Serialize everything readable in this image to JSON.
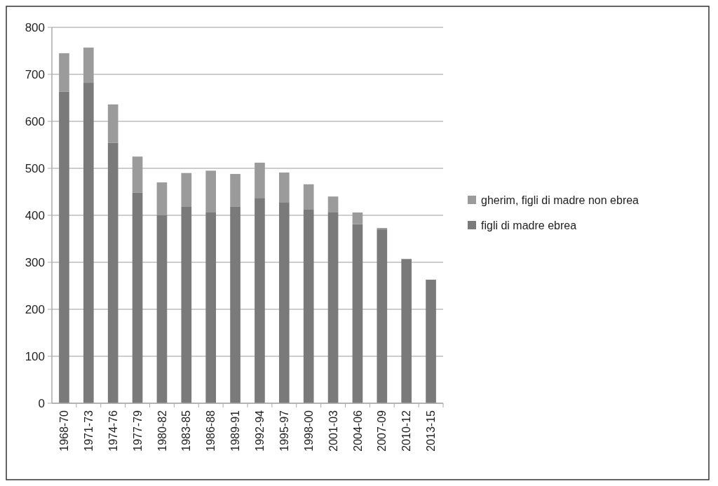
{
  "chart_data": {
    "type": "bar",
    "stacked": true,
    "categories": [
      "1968-70",
      "1971-73",
      "1974-76",
      "1977-79",
      "1980-82",
      "1983-85",
      "1986-88",
      "1989-91",
      "1992-94",
      "1995-97",
      "1998-00",
      "2001-03",
      "2004-06",
      "2007-09",
      "2010-12",
      "2013-15"
    ],
    "series": [
      {
        "name": "figli di madre ebrea",
        "color": "#7a7a7a",
        "values": [
          663,
          682,
          554,
          448,
          400,
          419,
          406,
          418,
          437,
          428,
          413,
          406,
          381,
          370,
          307,
          263
        ]
      },
      {
        "name": "gherim, figli di madre non ebrea",
        "color": "#9b9b9b",
        "values": [
          82,
          75,
          82,
          77,
          70,
          71,
          89,
          70,
          75,
          63,
          53,
          34,
          25,
          3,
          0,
          0
        ]
      }
    ],
    "ylim": [
      0,
      800
    ],
    "yticks": [
      0,
      100,
      200,
      300,
      400,
      500,
      600,
      700,
      800
    ],
    "grid": "y",
    "legend": "right"
  }
}
